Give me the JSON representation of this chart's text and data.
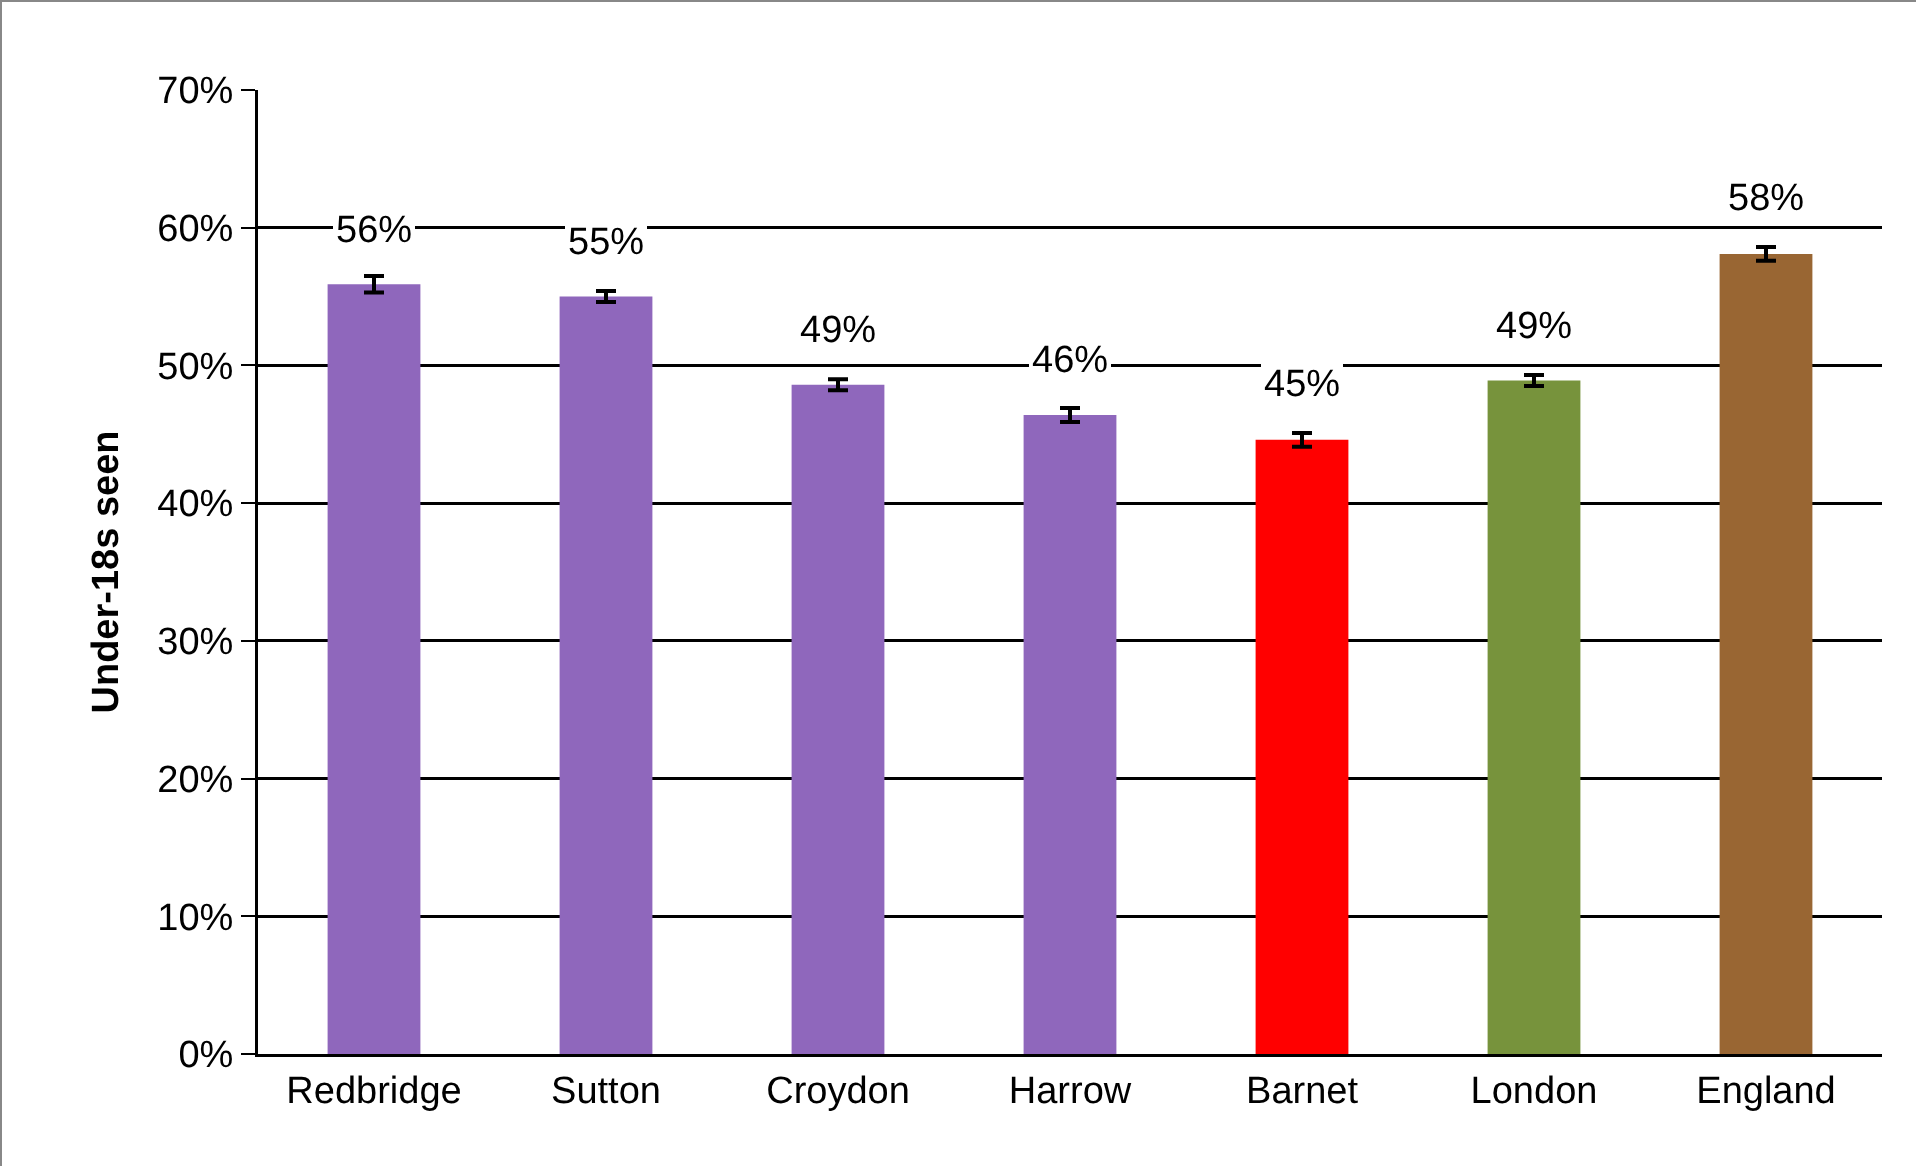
{
  "chart_data": {
    "type": "bar",
    "ylabel": "Under-18s seen",
    "categories": [
      "Redbridge",
      "Sutton",
      "Croydon",
      "Harrow",
      "Barnet",
      "London",
      "England"
    ],
    "values": [
      55.9,
      55.0,
      48.6,
      46.4,
      44.6,
      48.9,
      58.1
    ],
    "value_labels": [
      "56%",
      "55%",
      "49%",
      "46%",
      "45%",
      "49%",
      "58%"
    ],
    "errors": [
      0.6,
      0.4,
      0.4,
      0.5,
      0.5,
      0.4,
      0.5
    ],
    "colors": [
      "#8f67bc",
      "#8f67bc",
      "#8f67bc",
      "#8f67bc",
      "#ff0000",
      "#77933c",
      "#996633"
    ],
    "ylim": [
      0,
      70
    ],
    "yticks": [
      {
        "value": 0,
        "label": "0%"
      },
      {
        "value": 10,
        "label": "10%"
      },
      {
        "value": 20,
        "label": "20%"
      },
      {
        "value": 30,
        "label": "30%"
      },
      {
        "value": 40,
        "label": "40%"
      },
      {
        "value": 50,
        "label": "50%"
      },
      {
        "value": 60,
        "label": "60%"
      },
      {
        "value": 70,
        "label": "70%"
      }
    ],
    "grid": "y"
  }
}
